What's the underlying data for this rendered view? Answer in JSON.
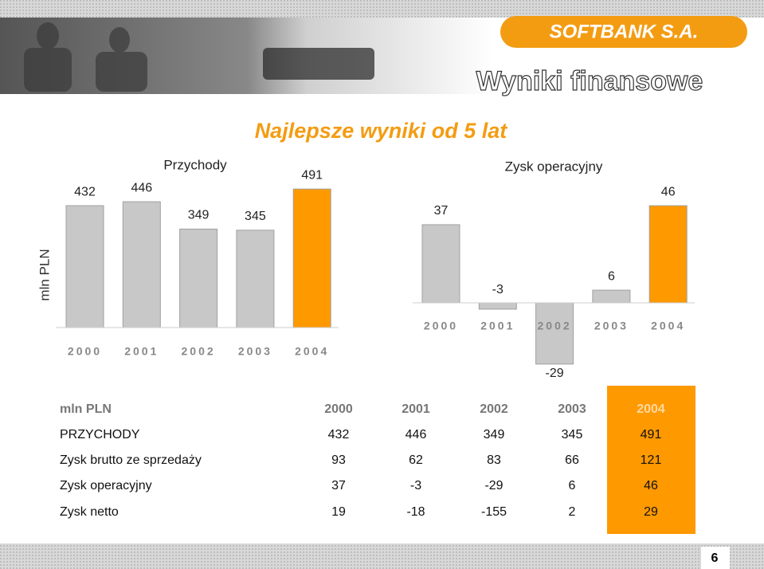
{
  "logo": "SOFTBANK S.A.",
  "title": "Wyniki finansowe",
  "subtitle": "Najlepsze wyniki od 5 lat",
  "y_label": "mln PLN",
  "chart_data": [
    {
      "type": "bar",
      "title": "Przychody",
      "categories": [
        "2000",
        "2001",
        "2002",
        "2003",
        "2004"
      ],
      "values": [
        432,
        446,
        349,
        345,
        491
      ],
      "colors": [
        "#c8c8c8",
        "#c8c8c8",
        "#c8c8c8",
        "#c8c8c8",
        "#ff9900"
      ],
      "ylim": [
        0,
        500
      ]
    },
    {
      "type": "bar",
      "title": "Zysk operacyjny",
      "categories": [
        "2000",
        "2001",
        "2002",
        "2003",
        "2004"
      ],
      "values": [
        37,
        -3,
        -29,
        6,
        46
      ],
      "colors": [
        "#c8c8c8",
        "#c8c8c8",
        "#c8c8c8",
        "#c8c8c8",
        "#ff9900"
      ],
      "ylim": [
        -30,
        50
      ]
    }
  ],
  "table": {
    "header": [
      "mln PLN",
      "2000",
      "2001",
      "2002",
      "2003",
      "2004"
    ],
    "rows": [
      [
        "PRZYCHODY",
        432,
        446,
        349,
        345,
        491
      ],
      [
        "Zysk brutto ze sprzedaży",
        93,
        62,
        83,
        66,
        121
      ],
      [
        "Zysk operacyjny",
        37,
        -3,
        -29,
        6,
        46
      ],
      [
        "Zysk netto",
        19,
        -18,
        -155,
        2,
        29
      ]
    ]
  },
  "page_number": 6
}
